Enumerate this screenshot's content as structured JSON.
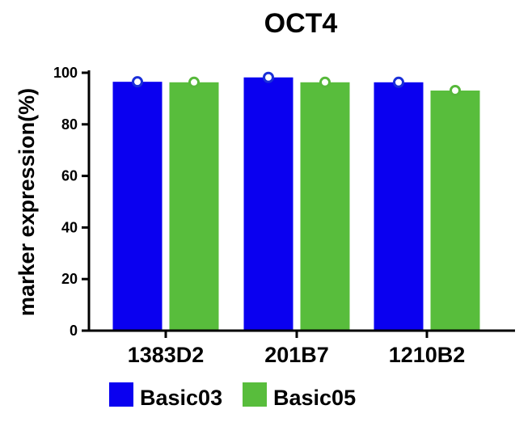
{
  "chart_data": {
    "type": "bar",
    "title": "OCT4",
    "xlabel": "",
    "ylabel": "marker expression(%)",
    "ylim": [
      0,
      100
    ],
    "yticks": [
      0,
      20,
      40,
      60,
      80,
      100
    ],
    "categories": [
      "1383D2",
      "201B7",
      "1210B2"
    ],
    "series": [
      {
        "name": "Basic03",
        "color": "#0a00f0",
        "marker_color": "#1a2fd8",
        "values": [
          96.5,
          98.2,
          96.3
        ]
      },
      {
        "name": "Basic05",
        "color": "#58bd3c",
        "marker_color": "#56b83a",
        "values": [
          96.3,
          96.3,
          93.1
        ]
      }
    ],
    "grid": false,
    "legend_position": "bottom-left"
  }
}
